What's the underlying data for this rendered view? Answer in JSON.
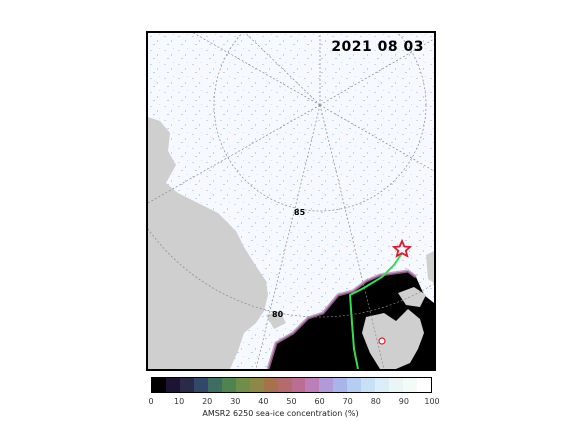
{
  "map": {
    "date": "2021  08  03",
    "latitude_labels": [
      "85",
      "80"
    ],
    "colors": {
      "land": "#cfcfcf",
      "open_water": "#000000",
      "ship_track": "#33dd55",
      "marker": "#e0192c"
    }
  },
  "colorbar": {
    "ticks": [
      "0",
      "10",
      "20",
      "30",
      "40",
      "50",
      "60",
      "70",
      "80",
      "90",
      "100"
    ],
    "label": "AMSR2 6250 sea-ice concentration (%)",
    "colors": [
      "#000000",
      "#1d1433",
      "#2c2a4a",
      "#32486a",
      "#3c6e63",
      "#4f8350",
      "#6f8e47",
      "#8e8847",
      "#a5724c",
      "#b56a6e",
      "#bc6d93",
      "#b97fb6",
      "#b09bd6",
      "#a9b4e8",
      "#b5cdf2",
      "#c8e0f5",
      "#dcedf7",
      "#eaf5f6",
      "#f4fbf6",
      "#ffffff"
    ]
  }
}
